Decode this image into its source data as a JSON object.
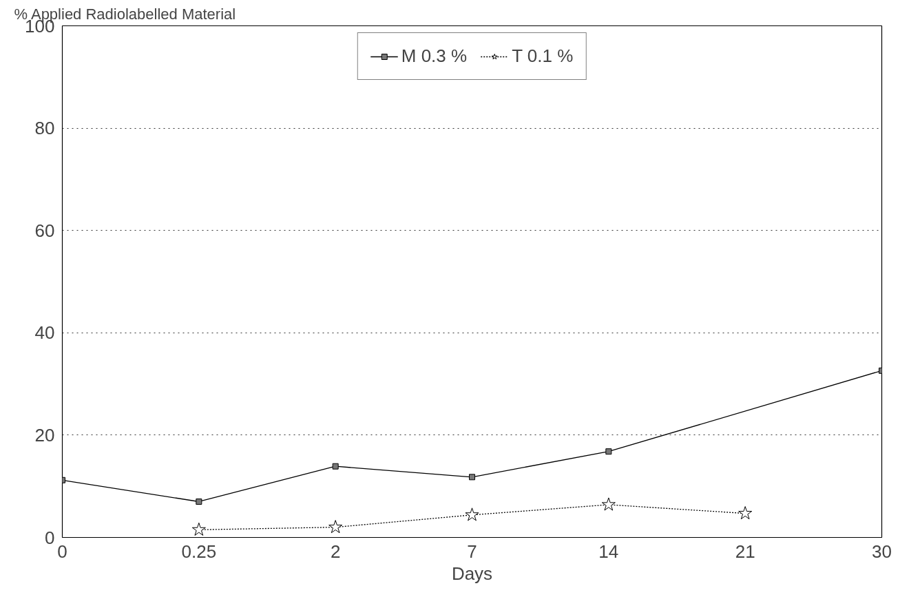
{
  "chart_data": {
    "type": "line",
    "ylabel": "% Applied Radiolabelled Material",
    "xlabel": "Days",
    "categories": [
      "0",
      "0.25",
      "2",
      "7",
      "14",
      "21",
      "30"
    ],
    "series": [
      {
        "name": "M 0.3 %",
        "color": "#000000",
        "marker": "square",
        "line_style": "solid",
        "values": [
          11.2,
          7.0,
          13.9,
          11.8,
          16.8,
          null,
          32.6
        ]
      },
      {
        "name": "T 0.1 %",
        "color": "#000000",
        "marker": "star",
        "line_style": "dotted",
        "values": [
          null,
          1.5,
          2.0,
          4.4,
          6.4,
          4.7,
          null
        ]
      }
    ],
    "ylim": [
      0,
      100
    ],
    "yticks": [
      0,
      20,
      40,
      60,
      80,
      100
    ],
    "grid": "y",
    "legend": "top"
  }
}
